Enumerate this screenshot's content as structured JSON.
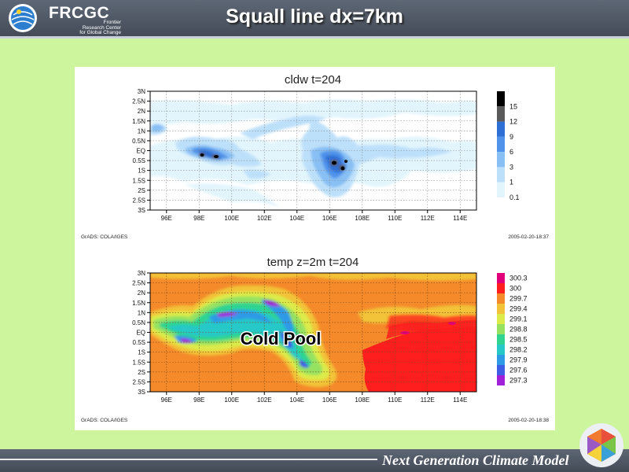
{
  "header": {
    "logo_text": "FRCGC",
    "logo_sub": [
      "Frontier",
      "Research Center",
      "for Global Change"
    ],
    "title": "Squall line  dx=7km"
  },
  "footer": {
    "text": "Next Generation Climate Model"
  },
  "chart_data": [
    {
      "type": "heatmap",
      "title": "cldw  t=204",
      "x_ticks": [
        "96E",
        "98E",
        "100E",
        "102E",
        "104E",
        "106E",
        "108E",
        "110E",
        "112E",
        "114E"
      ],
      "y_ticks": [
        "3N",
        "2.5N",
        "2N",
        "1.5N",
        "1N",
        "0.5N",
        "EQ",
        "0.5S",
        "1S",
        "1.5S",
        "2S",
        "2.5S",
        "3S"
      ],
      "xlim": [
        95,
        115
      ],
      "ylim": [
        -3,
        3
      ],
      "grid": true,
      "legend_values": [
        "15",
        "12",
        "9",
        "6",
        "3",
        "1",
        "0.1"
      ],
      "legend_colors": [
        "#000000",
        "#5a5a5a",
        "#2e6fd6",
        "#4f93ea",
        "#88bff4",
        "#bde0fa",
        "#e2f5fd"
      ],
      "legend_placement": "right",
      "footer_left": "GrADS: COLA/IGES",
      "footer_right": "2005-02-20-18:37"
    },
    {
      "type": "heatmap",
      "title": "temp  z=2m  t=204",
      "x_ticks": [
        "96E",
        "98E",
        "100E",
        "102E",
        "104E",
        "106E",
        "108E",
        "110E",
        "112E",
        "114E"
      ],
      "y_ticks": [
        "3N",
        "2.5N",
        "2N",
        "1.5N",
        "1N",
        "0.5N",
        "EQ",
        "0.5S",
        "1S",
        "1.5S",
        "2S",
        "2.5S",
        "3S"
      ],
      "xlim": [
        95,
        115
      ],
      "ylim": [
        -3,
        3
      ],
      "grid": true,
      "legend_values": [
        "300.3",
        "300",
        "299.7",
        "299.4",
        "299.1",
        "298.8",
        "298.5",
        "298.2",
        "297.9",
        "297.6",
        "297.3"
      ],
      "legend_colors": [
        "#e0007a",
        "#ff1e1e",
        "#f48a2a",
        "#f2c238",
        "#dceb4a",
        "#96e260",
        "#2fd490",
        "#26c8c8",
        "#2f9ae6",
        "#3f5ee6",
        "#a021d8"
      ],
      "legend_placement": "right",
      "annotation": "Cold Pool",
      "footer_left": "GrADS: COLA/IGES",
      "footer_right": "2005-02-20-18:38"
    }
  ]
}
